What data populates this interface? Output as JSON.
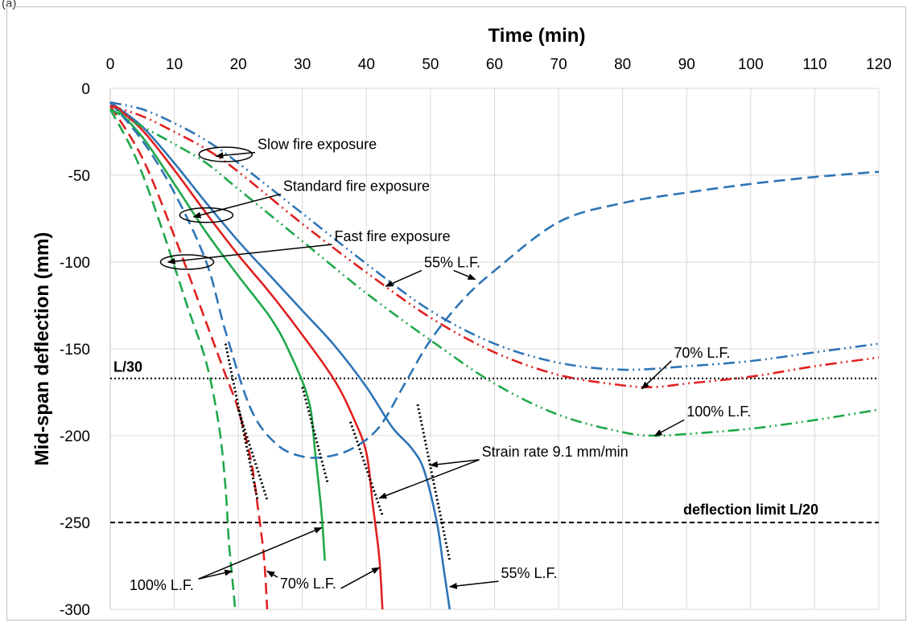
{
  "panel_label": "(a)",
  "chart_data": {
    "type": "line",
    "xlabel": "Time (min)",
    "ylabel": "Mid-span deflection (mm)",
    "xlim": [
      0,
      120
    ],
    "ylim": [
      -300,
      0
    ],
    "x_ticks": [
      0,
      10,
      20,
      30,
      40,
      50,
      60,
      70,
      80,
      90,
      100,
      110,
      120
    ],
    "y_ticks": [
      0,
      -50,
      -100,
      -150,
      -200,
      -250,
      -300
    ],
    "x_axis_position": "top",
    "grid": true,
    "reference_lines": [
      {
        "label": "L/30",
        "y": -167,
        "style": "dotted"
      },
      {
        "label": "deflection limit L/20",
        "y": -250,
        "style": "dashed"
      }
    ],
    "series": [
      {
        "color": "#2E75B6",
        "dash": "solid",
        "points": [
          [
            0,
            -8
          ],
          [
            5,
            -22
          ],
          [
            10,
            -43
          ],
          [
            15,
            -66
          ],
          [
            20,
            -88
          ],
          [
            25,
            -108
          ],
          [
            30,
            -128
          ],
          [
            35,
            -148
          ],
          [
            40,
            -172
          ],
          [
            44,
            -195
          ],
          [
            47,
            -207
          ],
          [
            49,
            -220
          ],
          [
            51,
            -250
          ],
          [
            52,
            -275
          ],
          [
            53,
            -300
          ]
        ]
      },
      {
        "color": "#E02020",
        "dash": "solid",
        "points": [
          [
            0,
            -8
          ],
          [
            5,
            -24
          ],
          [
            10,
            -47
          ],
          [
            15,
            -72
          ],
          [
            20,
            -96
          ],
          [
            25,
            -118
          ],
          [
            30,
            -142
          ],
          [
            35,
            -168
          ],
          [
            38,
            -190
          ],
          [
            40,
            -210
          ],
          [
            41,
            -240
          ],
          [
            42,
            -270
          ],
          [
            42.5,
            -300
          ]
        ]
      },
      {
        "color": "#1FA84A",
        "dash": "solid",
        "points": [
          [
            0,
            -8
          ],
          [
            5,
            -28
          ],
          [
            10,
            -55
          ],
          [
            15,
            -83
          ],
          [
            20,
            -108
          ],
          [
            25,
            -132
          ],
          [
            28,
            -152
          ],
          [
            31,
            -180
          ],
          [
            32,
            -210
          ],
          [
            33,
            -245
          ],
          [
            33.5,
            -272
          ]
        ]
      },
      {
        "color": "#2E75B6",
        "dash": "dashed",
        "points": [
          [
            0,
            -8
          ],
          [
            5,
            -30
          ],
          [
            10,
            -60
          ],
          [
            15,
            -100
          ],
          [
            18,
            -140
          ],
          [
            22,
            -185
          ],
          [
            26,
            -205
          ],
          [
            30,
            -212
          ],
          [
            34,
            -212
          ],
          [
            38,
            -207
          ],
          [
            42,
            -195
          ],
          [
            46,
            -170
          ],
          [
            50,
            -145
          ],
          [
            55,
            -122
          ],
          [
            60,
            -105
          ],
          [
            70,
            -77
          ],
          [
            80,
            -66
          ],
          [
            90,
            -60
          ],
          [
            100,
            -55
          ],
          [
            110,
            -51
          ],
          [
            120,
            -48
          ]
        ]
      },
      {
        "color": "#E02020",
        "dash": "dashed",
        "points": [
          [
            0,
            -10
          ],
          [
            5,
            -40
          ],
          [
            10,
            -85
          ],
          [
            15,
            -135
          ],
          [
            18,
            -165
          ],
          [
            20,
            -185
          ],
          [
            22,
            -215
          ],
          [
            23,
            -240
          ],
          [
            24,
            -270
          ],
          [
            24.5,
            -300
          ]
        ]
      },
      {
        "color": "#1FA84A",
        "dash": "dashed",
        "points": [
          [
            0,
            -12
          ],
          [
            4,
            -40
          ],
          [
            8,
            -80
          ],
          [
            12,
            -125
          ],
          [
            15,
            -158
          ],
          [
            17,
            -195
          ],
          [
            18,
            -230
          ],
          [
            18.5,
            -260
          ],
          [
            19,
            -280
          ],
          [
            19.5,
            -300
          ]
        ]
      },
      {
        "color": "#2E75B6",
        "dash": "dash-dot-dot",
        "points": [
          [
            0,
            -8
          ],
          [
            5,
            -12
          ],
          [
            10,
            -20
          ],
          [
            15,
            -30
          ],
          [
            20,
            -43
          ],
          [
            30,
            -72
          ],
          [
            40,
            -101
          ],
          [
            50,
            -128
          ],
          [
            60,
            -147
          ],
          [
            70,
            -158
          ],
          [
            80,
            -162
          ],
          [
            90,
            -160
          ],
          [
            100,
            -157
          ],
          [
            110,
            -152
          ],
          [
            120,
            -147
          ]
        ]
      },
      {
        "color": "#E02020",
        "dash": "dash-dot-dot",
        "points": [
          [
            0,
            -10
          ],
          [
            5,
            -16
          ],
          [
            10,
            -25
          ],
          [
            15,
            -35
          ],
          [
            20,
            -48
          ],
          [
            30,
            -78
          ],
          [
            40,
            -106
          ],
          [
            50,
            -132
          ],
          [
            60,
            -152
          ],
          [
            70,
            -165
          ],
          [
            80,
            -171
          ],
          [
            85,
            -172
          ],
          [
            90,
            -170
          ],
          [
            100,
            -166
          ],
          [
            110,
            -160
          ],
          [
            120,
            -155
          ]
        ]
      },
      {
        "color": "#1FA84A",
        "dash": "dash-dot-dot",
        "points": [
          [
            0,
            -12
          ],
          [
            5,
            -22
          ],
          [
            10,
            -32
          ],
          [
            15,
            -43
          ],
          [
            20,
            -58
          ],
          [
            30,
            -88
          ],
          [
            40,
            -118
          ],
          [
            50,
            -145
          ],
          [
            60,
            -170
          ],
          [
            70,
            -188
          ],
          [
            80,
            -198
          ],
          [
            85,
            -200
          ],
          [
            90,
            -199
          ],
          [
            100,
            -196
          ],
          [
            110,
            -191
          ],
          [
            120,
            -185
          ]
        ]
      }
    ],
    "strain_rate_segments": [
      [
        [
          18,
          -147
        ],
        [
          23,
          -237
        ]
      ],
      [
        [
          20,
          -185
        ],
        [
          24.5,
          -237
        ]
      ],
      [
        [
          30,
          -172
        ],
        [
          34,
          -228
        ]
      ],
      [
        [
          37.5,
          -192
        ],
        [
          42.5,
          -246
        ]
      ],
      [
        [
          48,
          -182
        ],
        [
          53,
          -272
        ]
      ]
    ],
    "annotations": [
      {
        "text": "Slow fire exposure",
        "anchor": [
          16.5,
          -39
        ],
        "label": [
          23,
          -35
        ]
      },
      {
        "text": "Standard fire exposure",
        "anchor": [
          13,
          -74
        ],
        "label": [
          27,
          -59
        ]
      },
      {
        "text": "Fast fire exposure",
        "anchor": [
          9,
          -100
        ],
        "label": [
          35,
          -88
        ]
      },
      {
        "text": "55% L.F.",
        "anchor": [
          43,
          -114
        ],
        "label": [
          49,
          -103
        ],
        "anchor2": [
          57,
          -110
        ]
      },
      {
        "text": "70% L.F.",
        "anchor": [
          83,
          -173
        ],
        "label": [
          88,
          -155
        ]
      },
      {
        "text": "100% L.F.",
        "anchor": [
          85,
          -200
        ],
        "label": [
          90,
          -189
        ]
      },
      {
        "text": "Strain rate 9.1 mm/min",
        "anchor": [
          50,
          -217
        ],
        "label": [
          58,
          -212
        ],
        "anchor2": [
          42,
          -236
        ]
      },
      {
        "text": "100% L.F.",
        "anchor": [
          19,
          -278
        ],
        "label": [
          3,
          -289
        ],
        "anchor2": [
          33,
          -253
        ]
      },
      {
        "text": "70% L.F.",
        "anchor": [
          24.5,
          -278
        ],
        "label": [
          26.5,
          -288
        ]
      },
      {
        "text": "55% L.F.",
        "anchor": [
          53,
          -287
        ],
        "label": [
          61,
          -282
        ]
      }
    ],
    "ellipses": [
      {
        "center": [
          18,
          -38
        ]
      },
      {
        "center": [
          15,
          -73
        ]
      },
      {
        "center": [
          12,
          -100
        ]
      }
    ],
    "extra_arrows": [
      {
        "from": [
          36,
          -288
        ],
        "to": [
          42,
          -276
        ]
      }
    ]
  }
}
